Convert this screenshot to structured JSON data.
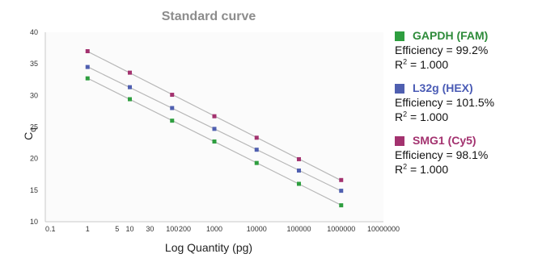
{
  "chart_data": {
    "type": "scatter",
    "title": "Standard curve",
    "xlabel": "Log Quantity (pg)",
    "ylabel": "C",
    "ylabel_subscript": "q",
    "x_scale": "log",
    "xlim": [
      0.1,
      10000000
    ],
    "ylim": [
      10,
      40
    ],
    "x_tick_labels": [
      "0.1",
      "1",
      "5",
      "10",
      "30",
      "100",
      "200",
      "1000",
      "10000",
      "100000",
      "1000000",
      "10000000"
    ],
    "x_tick_values": [
      0.1,
      1,
      5,
      10,
      30,
      100,
      200,
      1000,
      10000,
      100000,
      1000000,
      10000000
    ],
    "y_tick_values": [
      10,
      15,
      20,
      25,
      30,
      35,
      40
    ],
    "grid": false,
    "legend_position": "right",
    "trendlines": true,
    "series": [
      {
        "name": "GAPDH (FAM)",
        "color": "#2e9e3f",
        "label_color": "#2e8b3a",
        "efficiency_text": "Efficiency = 99.2%",
        "r2_prefix": "R",
        "r2_value": " = 1.000",
        "x": [
          1,
          10,
          100,
          1000,
          10000,
          100000,
          1000000
        ],
        "y": [
          32.7,
          29.4,
          26.0,
          22.7,
          19.3,
          16.0,
          12.6
        ]
      },
      {
        "name": "L32g (HEX)",
        "color": "#4f5fb0",
        "label_color": "#4a5bb5",
        "efficiency_text": "Efficiency = 101.5%",
        "r2_prefix": "R",
        "r2_value": " = 1.000",
        "x": [
          1,
          10,
          100,
          1000,
          10000,
          100000,
          1000000
        ],
        "y": [
          34.5,
          31.3,
          28.0,
          24.7,
          21.4,
          18.1,
          14.9
        ]
      },
      {
        "name": "SMG1 (Cy5)",
        "color": "#a3326f",
        "label_color": "#a3326f",
        "efficiency_text": "Efficiency = 98.1%",
        "r2_prefix": "R",
        "r2_value": " = 1.000",
        "x": [
          1,
          10,
          100,
          1000,
          10000,
          100000,
          1000000
        ],
        "y": [
          37.0,
          33.6,
          30.1,
          26.7,
          23.3,
          19.9,
          16.6
        ]
      }
    ]
  }
}
